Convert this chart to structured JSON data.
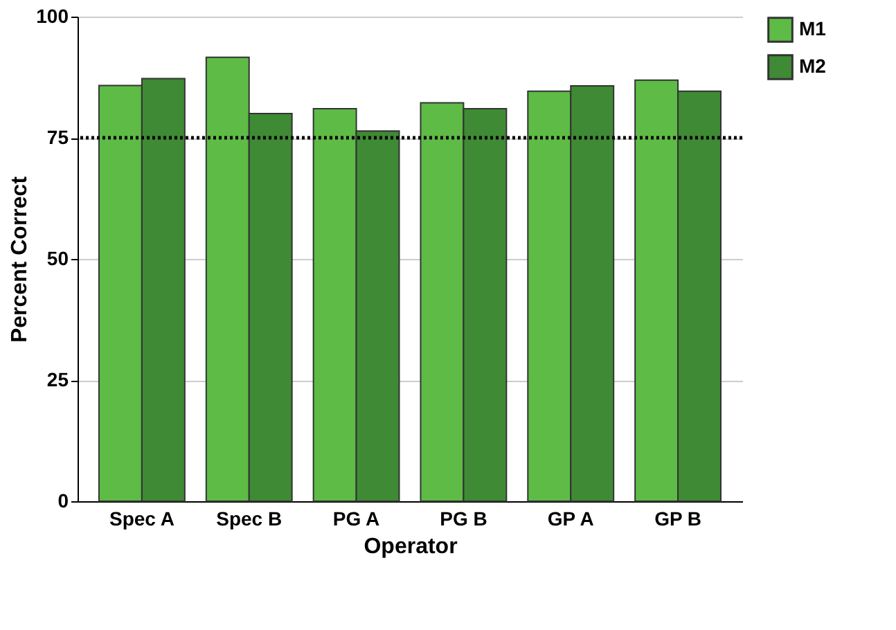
{
  "chart_data": {
    "type": "bar",
    "xlabel": "Operator",
    "ylabel": "Percent Correct",
    "categories": [
      "Spec A",
      "Spec B",
      "PG A",
      "PG B",
      "GP A",
      "GP B"
    ],
    "series": [
      {
        "name": "M1",
        "color": "#5dbb46",
        "values": [
          85.8,
          91.6,
          81,
          82.2,
          84.6,
          86.9
        ]
      },
      {
        "name": "M2",
        "color": "#3f8a34",
        "values": [
          87.2,
          80,
          76.4,
          81,
          85.7,
          84.6
        ]
      }
    ],
    "ylim": [
      0,
      100
    ],
    "yticks": [
      0,
      25,
      50,
      75,
      100
    ],
    "grid": "y",
    "legend": "top right",
    "ref_lines": [
      {
        "axis": "y",
        "value": 75,
        "color": "#000000",
        "line_style": "dotted"
      }
    ]
  }
}
